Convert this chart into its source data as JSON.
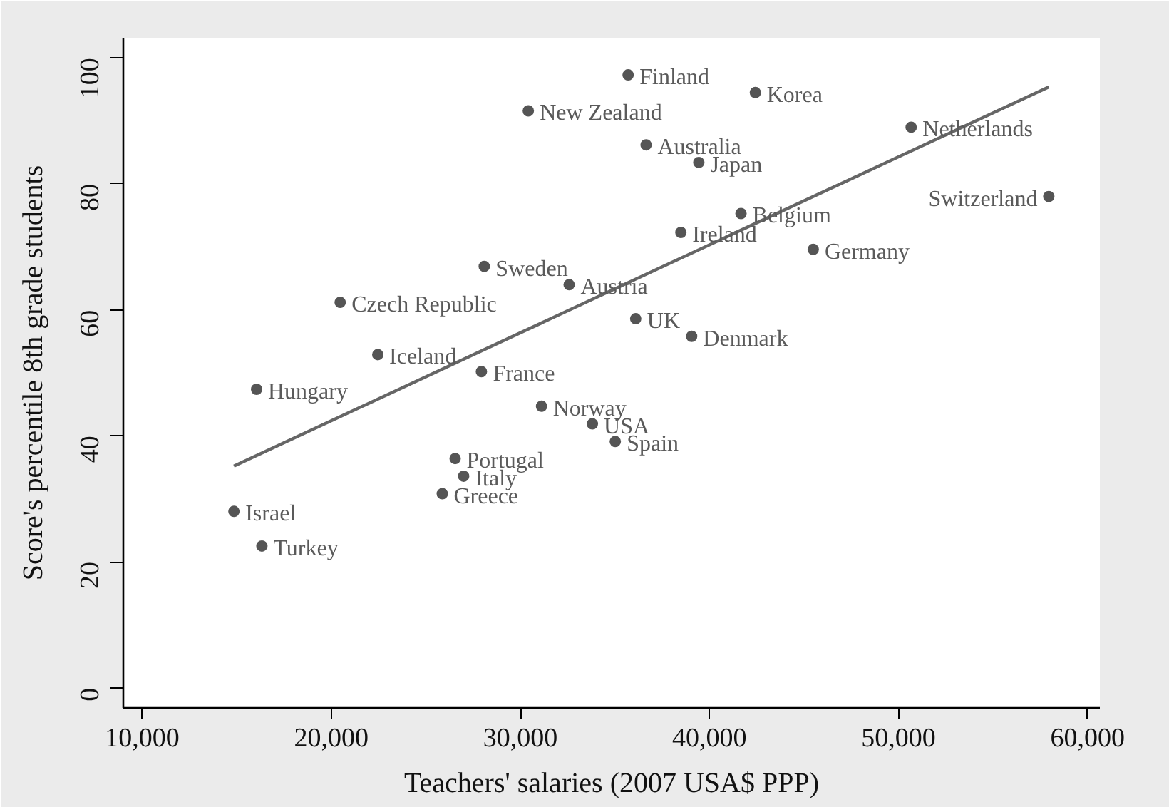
{
  "chart_data": {
    "type": "scatter",
    "xlabel": "Teachers' salaries (2007 USA$ PPP)",
    "ylabel": "Score's percentile 8th grade students",
    "xlim": [
      9000,
      60650
    ],
    "ylim": [
      -3.2,
      103.2
    ],
    "xticks": [
      {
        "value": 10000,
        "label": "10,000"
      },
      {
        "value": 20000,
        "label": "20,000"
      },
      {
        "value": 30000,
        "label": "30,000"
      },
      {
        "value": 40000,
        "label": "40,000"
      },
      {
        "value": 50000,
        "label": "50,000"
      },
      {
        "value": 60000,
        "label": "60,000"
      }
    ],
    "yticks": [
      0,
      20,
      40,
      60,
      80,
      100
    ],
    "grid": false,
    "series": [
      {
        "marker": "circle",
        "color": "#555555",
        "x": [
          35700,
          30420,
          42430,
          36650,
          39440,
          50670,
          57950,
          41670,
          38490,
          45490,
          28090,
          32580,
          20470,
          36100,
          39060,
          22460,
          27940,
          16050,
          31120,
          33810,
          35020,
          26550,
          27000,
          25870,
          14850,
          16330
        ],
        "values": [
          97.3,
          91.6,
          94.5,
          86.2,
          83.4,
          89.0,
          78.0,
          75.3,
          72.3,
          69.6,
          66.9,
          64.0,
          61.2,
          58.6,
          55.8,
          52.9,
          50.2,
          47.4,
          44.7,
          41.9,
          39.1,
          36.4,
          33.6,
          30.8,
          28.0,
          22.5
        ]
      },
      {
        "type": "line",
        "color": "#666666",
        "x": [
          14850,
          57950
        ],
        "values": [
          35.2,
          95.4
        ]
      }
    ],
    "annotations": [
      {
        "text": "Finland",
        "x": 35700,
        "y": 97.3
      },
      {
        "text": "New Zealand",
        "x": 30420,
        "y": 91.6
      },
      {
        "text": "Korea",
        "x": 42430,
        "y": 94.5
      },
      {
        "text": "Australia",
        "x": 36650,
        "y": 86.2
      },
      {
        "text": "Japan",
        "x": 39440,
        "y": 83.4
      },
      {
        "text": "Netherlands",
        "x": 50670,
        "y": 89.0
      },
      {
        "text": "Switzerland",
        "x": 57950,
        "y": 78.0
      },
      {
        "text": "Belgium",
        "x": 41670,
        "y": 75.3
      },
      {
        "text": "Ireland",
        "x": 38490,
        "y": 72.3
      },
      {
        "text": "Germany",
        "x": 45490,
        "y": 69.6
      },
      {
        "text": "Sweden",
        "x": 28090,
        "y": 66.9
      },
      {
        "text": "Austria",
        "x": 32580,
        "y": 64.0
      },
      {
        "text": "Czech Republic",
        "x": 20470,
        "y": 61.2
      },
      {
        "text": "UK",
        "x": 36100,
        "y": 58.6
      },
      {
        "text": "Denmark",
        "x": 39060,
        "y": 55.8
      },
      {
        "text": "Iceland",
        "x": 22460,
        "y": 52.9
      },
      {
        "text": "France",
        "x": 27940,
        "y": 50.2
      },
      {
        "text": "Hungary",
        "x": 16050,
        "y": 47.4
      },
      {
        "text": "Norway",
        "x": 31120,
        "y": 44.7
      },
      {
        "text": "USA",
        "x": 33810,
        "y": 41.9
      },
      {
        "text": "Spain",
        "x": 35020,
        "y": 39.1
      },
      {
        "text": "Portugal",
        "x": 26550,
        "y": 36.4
      },
      {
        "text": "Italy",
        "x": 27000,
        "y": 33.6
      },
      {
        "text": "Greece",
        "x": 25870,
        "y": 30.8
      },
      {
        "text": "Israel",
        "x": 14850,
        "y": 28.0
      },
      {
        "text": "Turkey",
        "x": 16330,
        "y": 22.5
      }
    ]
  }
}
